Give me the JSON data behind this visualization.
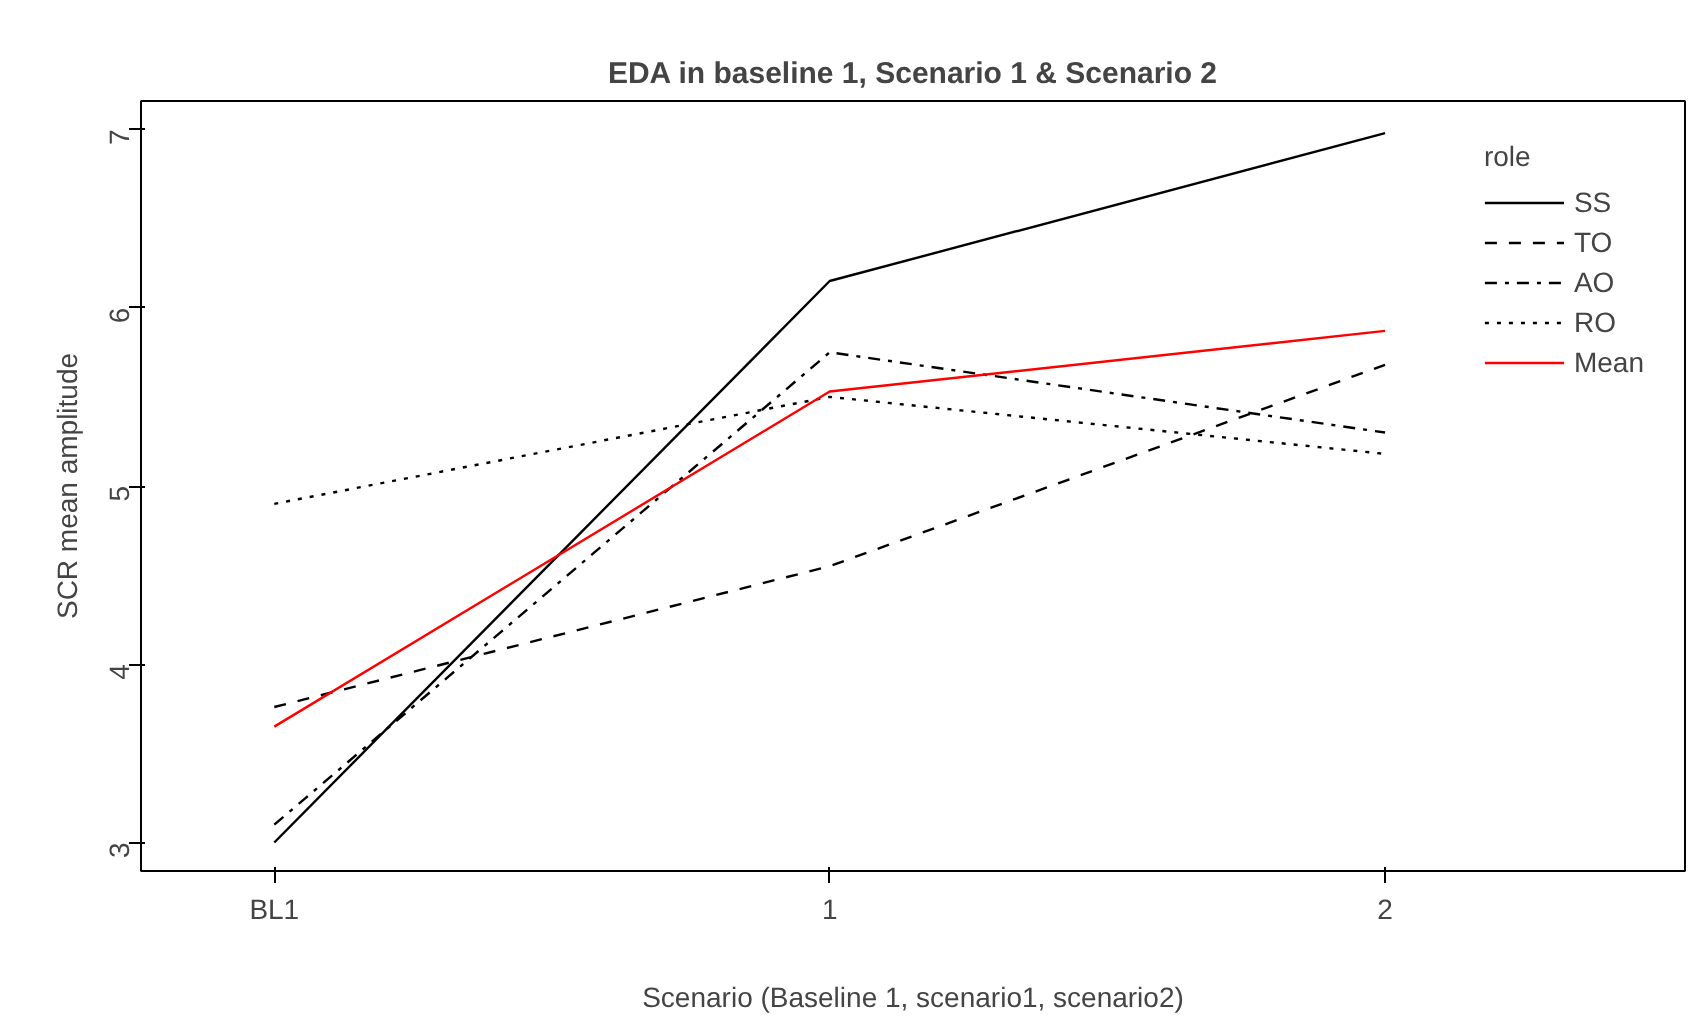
{
  "chart_data": {
    "type": "line",
    "title": "EDA in baseline 1, Scenario 1 & Scenario 2",
    "xlabel": "Scenario (Baseline 1, scenario1, scenario2)",
    "ylabel": "SCR mean amplitude",
    "legend_title": "role",
    "categories": [
      "BL1",
      "1",
      "2"
    ],
    "series": [
      {
        "name": "SS",
        "color": "#000000",
        "line_style": "solid",
        "values": [
          3.0,
          6.15,
          6.98
        ]
      },
      {
        "name": "TO",
        "color": "#000000",
        "line_style": "dashed",
        "values": [
          3.76,
          4.55,
          5.68
        ]
      },
      {
        "name": "AO",
        "color": "#000000",
        "line_style": "dashdot",
        "values": [
          3.1,
          5.75,
          5.3
        ]
      },
      {
        "name": "RO",
        "color": "#000000",
        "line_style": "dotted",
        "values": [
          4.9,
          5.5,
          5.18
        ]
      },
      {
        "name": "Mean",
        "color": "#ff0000",
        "line_style": "solid",
        "values": [
          3.65,
          5.53,
          5.87
        ]
      }
    ],
    "ylim": [
      2.84,
      7.16
    ],
    "yticks": [
      3,
      4,
      5,
      6,
      7
    ],
    "grid": false,
    "legend": "top right",
    "marker": "none"
  }
}
